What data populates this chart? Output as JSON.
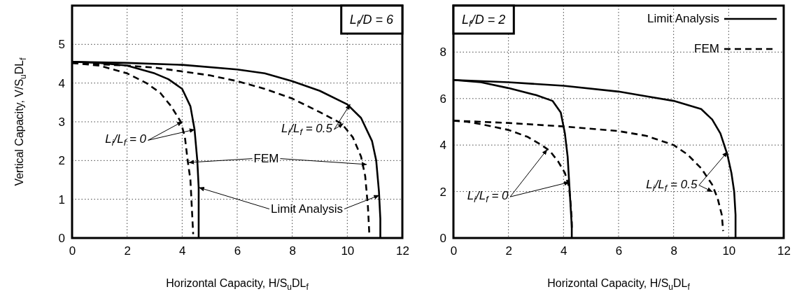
{
  "chart_data": [
    {
      "type": "line",
      "xlabel": "Horizontal Capacity, H/S$_{u}$DL$_{f}$",
      "ylabel": "Vertical Capacity, V/S$_{u}$DL$_{f}$",
      "xlim": [
        0,
        12
      ],
      "ylim": [
        0,
        6
      ],
      "xticks": [
        0,
        2,
        4,
        6,
        8,
        10,
        12
      ],
      "yticks": [
        0,
        1,
        2,
        3,
        4,
        5
      ],
      "grid": true,
      "legend": false,
      "annotations": [
        "L$_{f}$/D = 6",
        {
          "text": "L$_{i}$/L$_{f}$ = 0",
          "x": 4.0,
          "y": 3.0
        },
        {
          "text": "L$_{i}$/L$_{f}$ = 0.5",
          "x": 10.1,
          "y": 3.45
        },
        {
          "text": "FEM",
          "x": 4.25,
          "y": 1.95
        },
        {
          "text": "Limit Analysis",
          "x": 4.62,
          "y": 1.3
        }
      ],
      "series": [
        {
          "color": "#000000",
          "line_style": "solid",
          "x": [
            0,
            1,
            2,
            3,
            3.5,
            4,
            4.3,
            4.45,
            4.55,
            4.6,
            4.6
          ],
          "values": [
            4.55,
            4.52,
            4.45,
            4.25,
            4.1,
            3.85,
            3.4,
            2.8,
            2,
            1.3,
            0
          ]
        },
        {
          "color": "#000000",
          "line_style": "dashed",
          "x": [
            0,
            1,
            2,
            2.7,
            3.2,
            3.6,
            3.95,
            4.1,
            4.2,
            4.3,
            4.35,
            4.4
          ],
          "values": [
            4.52,
            4.45,
            4.25,
            4.0,
            3.75,
            3.4,
            3.0,
            2.6,
            2.0,
            1.5,
            0.8,
            0.1
          ]
        },
        {
          "color": "#000000",
          "line_style": "solid",
          "x": [
            0,
            2,
            4,
            6,
            7,
            8,
            9,
            10,
            10.5,
            10.9,
            11.05,
            11.15,
            11.2,
            11.2
          ],
          "values": [
            4.55,
            4.52,
            4.47,
            4.35,
            4.25,
            4.05,
            3.8,
            3.45,
            3.1,
            2.5,
            2.0,
            1.2,
            0.5,
            0
          ]
        },
        {
          "color": "#000000",
          "line_style": "dashed",
          "x": [
            0,
            2,
            3,
            4,
            5,
            6,
            7,
            8,
            9,
            9.8,
            10.2,
            10.5,
            10.65,
            10.75,
            10.8
          ],
          "values": [
            4.52,
            4.45,
            4.4,
            4.3,
            4.2,
            4.05,
            3.85,
            3.6,
            3.25,
            2.95,
            2.6,
            2.1,
            1.6,
            0.8,
            0.1
          ]
        }
      ]
    },
    {
      "type": "line",
      "xlabel": "Horizontal Capacity, H/S$_{u}$DL$_{f}$",
      "xlim": [
        0,
        12
      ],
      "ylim": [
        0,
        10
      ],
      "xticks": [
        0,
        2,
        4,
        6,
        8,
        10,
        12
      ],
      "yticks": [
        0,
        2,
        4,
        6,
        8
      ],
      "grid": true,
      "legend": "top right",
      "annotations": [
        "L$_{f}$/D = 2",
        {
          "text": "L$_{i}$/L$_{f}$ = 0",
          "x": 3.4,
          "y": 3.8
        },
        {
          "text": "L$_{i}$/L$_{f}$ = 0.5",
          "x": 9.95,
          "y": 3.7
        }
      ],
      "series": [
        {
          "name": "Limit Analysis",
          "color": "#000000",
          "line_style": "solid",
          "x": [
            0,
            1,
            2,
            3,
            3.6,
            3.9,
            4.05,
            4.15,
            4.2,
            4.25,
            4.3,
            4.3
          ],
          "values": [
            6.8,
            6.7,
            6.45,
            6.15,
            5.9,
            5.4,
            4.5,
            3.5,
            2.5,
            1.5,
            0.5,
            0
          ]
        },
        {
          "name": "FEM",
          "color": "#000000",
          "line_style": "dashed",
          "x": [
            0,
            0.5,
            1,
            2,
            2.7,
            3.2,
            3.5,
            3.8,
            4.05,
            4.2,
            4.25,
            4.3,
            4.3
          ],
          "values": [
            5.05,
            5.0,
            4.9,
            4.65,
            4.35,
            4.0,
            3.75,
            3.3,
            2.8,
            2.2,
            1.6,
            0.8,
            0.3
          ]
        },
        {
          "color": "#000000",
          "line_style": "solid",
          "x": [
            0,
            2,
            4,
            6,
            7,
            8,
            9,
            9.4,
            9.7,
            9.95,
            10.1,
            10.2,
            10.25,
            10.25
          ],
          "values": [
            6.8,
            6.7,
            6.55,
            6.3,
            6.1,
            5.9,
            5.55,
            5.1,
            4.5,
            3.6,
            2.8,
            2.0,
            1.0,
            0
          ]
        },
        {
          "color": "#000000",
          "line_style": "dashed",
          "x": [
            0,
            2,
            4,
            6,
            7,
            8,
            8.5,
            9,
            9.4,
            9.6,
            9.75,
            9.8
          ],
          "values": [
            5.05,
            4.95,
            4.8,
            4.6,
            4.4,
            4.0,
            3.6,
            3.0,
            2.3,
            1.7,
            1.0,
            0.3
          ]
        }
      ]
    }
  ]
}
